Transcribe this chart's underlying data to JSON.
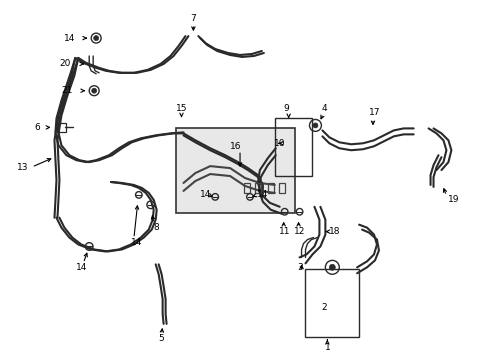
{
  "bg_color": "#ffffff",
  "line_color": "#2a2a2a",
  "inset_bg": "#e8e8e8",
  "fig_width": 4.89,
  "fig_height": 3.6,
  "dpi": 100
}
